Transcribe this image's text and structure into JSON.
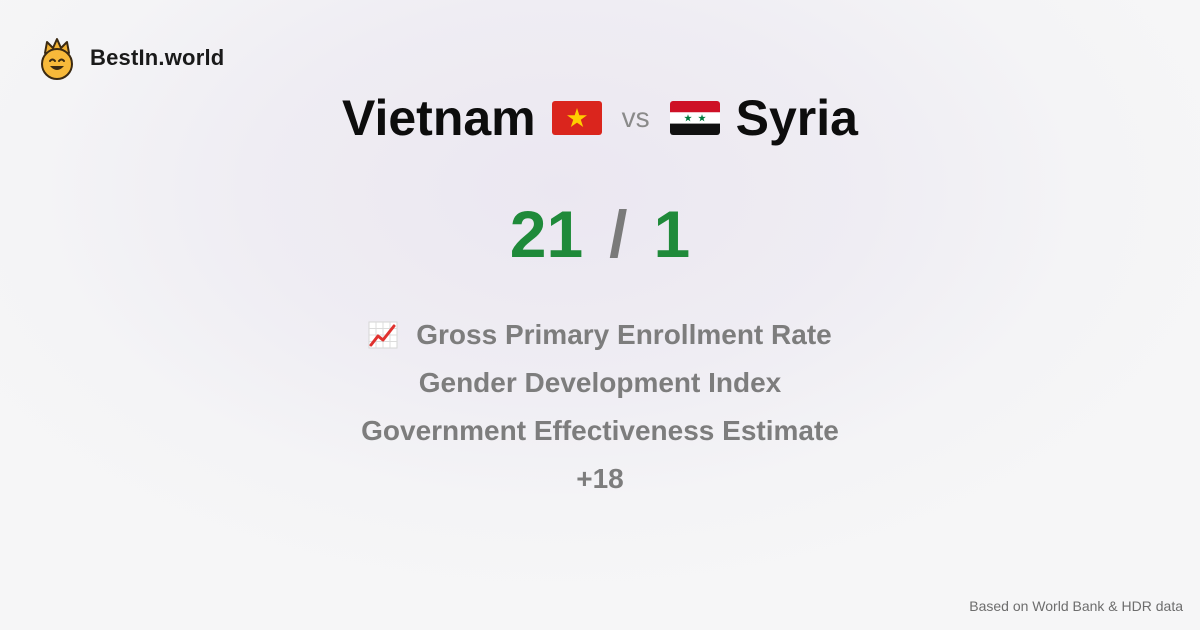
{
  "brand": {
    "logo_icon": "crown-smiley-icon",
    "name": "BestIn.world"
  },
  "comparison": {
    "left_country": "Vietnam",
    "left_flag_icon": "vietnam-flag-icon",
    "vs_label": "vs",
    "right_country": "Syria",
    "right_flag_icon": "syria-flag-icon"
  },
  "score": {
    "left": "21",
    "separator": "/",
    "right": "1"
  },
  "metrics": {
    "icon": "chart-increasing-icon",
    "items": [
      "Gross Primary Enrollment Rate",
      "Gender Development Index",
      "Government Effectiveness Estimate",
      "+18"
    ]
  },
  "footer": {
    "source": "Based on World Bank & HDR data"
  },
  "colors": {
    "score_green": "#1f8a3a",
    "muted_gray": "#7d7d7d",
    "vietnam_red": "#da251d",
    "vietnam_star": "#ffcd00",
    "syria_red": "#ce1126",
    "syria_green": "#007a3d"
  }
}
